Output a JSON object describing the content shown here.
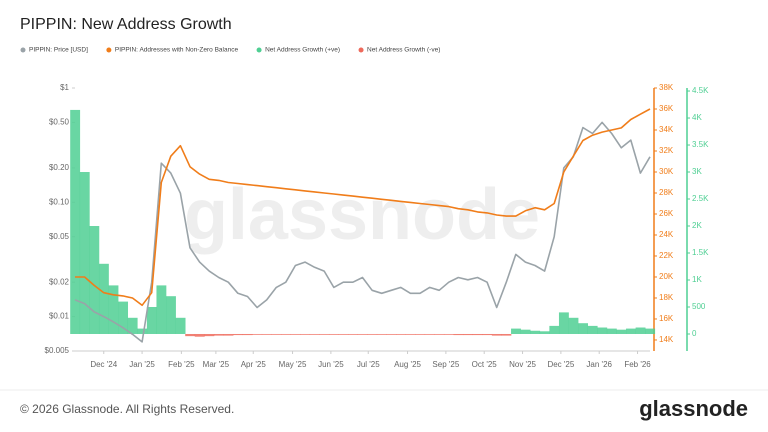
{
  "chart_data": {
    "type": "line",
    "title": "PIPPIN: New Address Growth",
    "watermark": "glassnode",
    "footer": "© 2026 Glassnode. All Rights Reserved.",
    "brand": "glassnode",
    "log_y": true,
    "xlim": [
      0,
      60
    ],
    "xticks": [
      {
        "value": 3,
        "label": "Dec '24"
      },
      {
        "value": 7,
        "label": "Jan '25"
      },
      {
        "value": 11.1,
        "label": "Feb '25"
      },
      {
        "value": 14.7,
        "label": "Mar '25"
      },
      {
        "value": 18.6,
        "label": "Apr '25"
      },
      {
        "value": 22.7,
        "label": "May '25"
      },
      {
        "value": 26.7,
        "label": "Jun '25"
      },
      {
        "value": 30.6,
        "label": "Jul '25"
      },
      {
        "value": 34.7,
        "label": "Aug '25"
      },
      {
        "value": 38.7,
        "label": "Sep '25"
      },
      {
        "value": 42.7,
        "label": "Oct '25"
      },
      {
        "value": 46.7,
        "label": "Nov '25"
      },
      {
        "value": 50.7,
        "label": "Dec '25"
      },
      {
        "value": 54.7,
        "label": "Jan '26"
      },
      {
        "value": 58.7,
        "label": "Feb '26"
      }
    ],
    "ylim": [
      0.005,
      1
    ],
    "yticks": [
      {
        "value": 1,
        "label": "$1"
      },
      {
        "value": 0.5,
        "label": "$0.50"
      },
      {
        "value": 0.2,
        "label": "$0.20"
      },
      {
        "value": 0.1,
        "label": "$0.10"
      },
      {
        "value": 0.05,
        "label": "$0.05"
      },
      {
        "value": 0.02,
        "label": "$0.02"
      },
      {
        "value": 0.01,
        "label": "$0.01"
      },
      {
        "value": 0.005,
        "label": "$0.005"
      }
    ],
    "y2lim": [
      12950,
      38000
    ],
    "y2ticks": [
      {
        "value": 14000,
        "label": "14K"
      },
      {
        "value": 16000,
        "label": "16K"
      },
      {
        "value": 18000,
        "label": "18K"
      },
      {
        "value": 20000,
        "label": "20K"
      },
      {
        "value": 22000,
        "label": "22K"
      },
      {
        "value": 24000,
        "label": "24K"
      },
      {
        "value": 26000,
        "label": "26K"
      },
      {
        "value": 28000,
        "label": "28K"
      },
      {
        "value": 30000,
        "label": "30K"
      },
      {
        "value": 32000,
        "label": "32K"
      },
      {
        "value": 34000,
        "label": "34K"
      },
      {
        "value": 36000,
        "label": "36K"
      },
      {
        "value": 38000,
        "label": "38K"
      }
    ],
    "y3lim": [
      -315,
      4556
    ],
    "y3ticks": [
      0,
      500,
      {
        "value": 1000,
        "label": "1K"
      },
      {
        "value": 1500,
        "label": "1.5K"
      },
      {
        "value": 2000,
        "label": "2K"
      },
      {
        "value": 2500,
        "label": "2.5K"
      },
      {
        "value": 3000,
        "label": "3K"
      },
      {
        "value": 3500,
        "label": "3.5K"
      },
      {
        "value": 4000,
        "label": "4K"
      },
      {
        "value": 4500,
        "label": "4.5K"
      }
    ],
    "series": [
      {
        "name": "PIPPIN: Price [USD]",
        "color": "#9aa3a8",
        "axis": "y",
        "kind": "line",
        "values": [
          0.014,
          0.013,
          0.011,
          0.01,
          0.009,
          0.008,
          0.007,
          0.006,
          0.02,
          0.22,
          0.18,
          0.12,
          0.04,
          0.03,
          0.025,
          0.022,
          0.02,
          0.016,
          0.015,
          0.012,
          0.014,
          0.018,
          0.02,
          0.028,
          0.03,
          0.027,
          0.025,
          0.018,
          0.02,
          0.02,
          0.022,
          0.017,
          0.016,
          0.017,
          0.018,
          0.016,
          0.016,
          0.018,
          0.017,
          0.02,
          0.022,
          0.021,
          0.022,
          0.02,
          0.012,
          0.02,
          0.035,
          0.03,
          0.028,
          0.025,
          0.05,
          0.2,
          0.25,
          0.45,
          0.4,
          0.5,
          0.4,
          0.3,
          0.35,
          0.18,
          0.25
        ]
      },
      {
        "name": "PIPPIN: Addresses with Non-Zero Balance",
        "color": "#f07d1a",
        "axis": "y2",
        "kind": "line",
        "values": [
          20000,
          20000,
          19200,
          18500,
          18300,
          18200,
          18000,
          17300,
          18500,
          29000,
          31500,
          32500,
          30500,
          29800,
          29300,
          29200,
          29000,
          28900,
          28800,
          28700,
          28600,
          28500,
          28400,
          28300,
          28200,
          28100,
          28000,
          27900,
          27800,
          27700,
          27600,
          27500,
          27400,
          27300,
          27200,
          27100,
          27000,
          26900,
          26800,
          26700,
          26500,
          26400,
          26200,
          26100,
          25900,
          25800,
          25800,
          26300,
          26600,
          26400,
          27000,
          30000,
          31500,
          33000,
          33500,
          33800,
          34000,
          34200,
          35000,
          35500,
          36000
        ]
      },
      {
        "name": "Net Address Growth (+ve)",
        "color": "#4fcf93",
        "axis": "y3",
        "kind": "bar",
        "values": [
          4150,
          3000,
          2000,
          1300,
          900,
          600,
          300,
          100,
          500,
          900,
          700,
          300,
          null,
          null,
          null,
          null,
          null,
          null,
          null,
          null,
          null,
          null,
          null,
          null,
          null,
          null,
          null,
          null,
          null,
          null,
          null,
          null,
          null,
          null,
          null,
          null,
          null,
          null,
          null,
          null,
          null,
          null,
          null,
          null,
          null,
          null,
          100,
          80,
          60,
          50,
          150,
          400,
          300,
          200,
          150,
          120,
          100,
          80,
          100,
          120,
          100
        ]
      },
      {
        "name": "Net Address Growth (-ve)",
        "color": "#ee6a5c",
        "axis": "y3",
        "kind": "bar",
        "values": [
          null,
          null,
          null,
          null,
          null,
          null,
          null,
          null,
          null,
          null,
          null,
          null,
          -40,
          -50,
          -40,
          -30,
          -30,
          -20,
          -20,
          -10,
          -10,
          -10,
          -10,
          -10,
          -10,
          -10,
          -10,
          -10,
          -10,
          -10,
          -10,
          -10,
          -10,
          -10,
          -10,
          -10,
          -10,
          -10,
          -10,
          -10,
          -20,
          -20,
          -20,
          -20,
          -30,
          -30,
          null,
          null,
          null,
          null,
          null,
          null,
          null,
          null,
          null,
          null,
          null,
          null,
          null,
          null,
          null
        ]
      }
    ]
  }
}
